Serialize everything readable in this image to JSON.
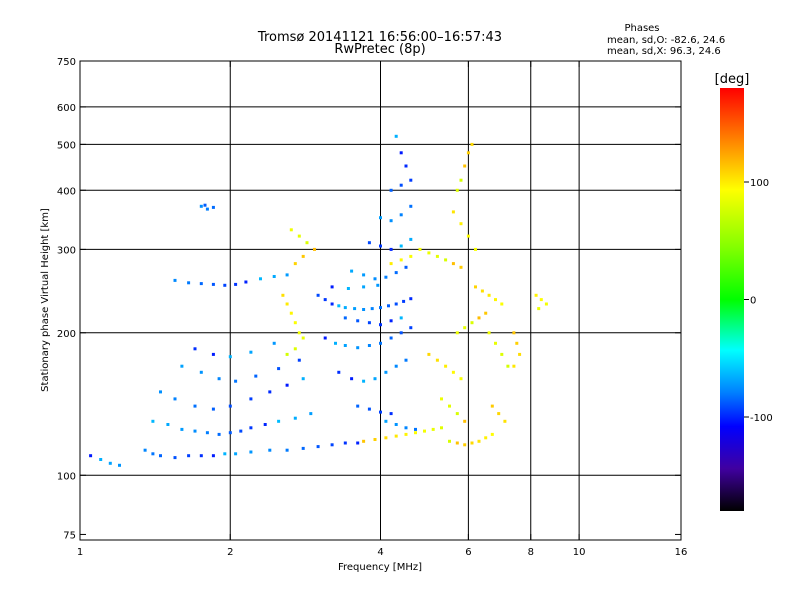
{
  "chart_data": {
    "type": "scatter",
    "title": "Tromsø 20141121 16:56:00–16:57:43",
    "subtitle": "RwPretec (8p)",
    "stats": {
      "heading": "Phases",
      "line_o": "mean, sd,O: -82.6, 24.6",
      "line_x": "mean, sd,X:  96.3, 24.6"
    },
    "xlabel": "Frequency [MHz]",
    "ylabel": "Stationary phase Virtual Height [km]",
    "xscale": "log",
    "yscale": "log",
    "xlim": [
      1,
      16
    ],
    "ylim": [
      73,
      750
    ],
    "x_ticks": [
      1,
      2,
      4,
      6,
      8,
      10,
      16
    ],
    "y_ticks": [
      75,
      100,
      200,
      300,
      400,
      500,
      600,
      750
    ],
    "x_grid": [
      2,
      4,
      6,
      8,
      10
    ],
    "y_grid": [
      100,
      200,
      300,
      400,
      500,
      600
    ],
    "colorbar": {
      "label": "[deg]",
      "range": [
        -180,
        180
      ],
      "ticks": [
        100,
        0,
        -100
      ]
    },
    "series": [
      {
        "mode": "O",
        "approx_phase_mean": -82.6,
        "points": [
          [
            1.05,
            110
          ],
          [
            1.1,
            108
          ],
          [
            1.15,
            106
          ],
          [
            1.2,
            105
          ],
          [
            1.35,
            113
          ],
          [
            1.4,
            111
          ],
          [
            1.45,
            110
          ],
          [
            1.55,
            109
          ],
          [
            1.65,
            110
          ],
          [
            1.75,
            110
          ],
          [
            1.85,
            110
          ],
          [
            1.95,
            111
          ],
          [
            2.05,
            111
          ],
          [
            2.2,
            112
          ],
          [
            2.4,
            113
          ],
          [
            2.6,
            113
          ],
          [
            2.8,
            114
          ],
          [
            3.0,
            115
          ],
          [
            3.2,
            116
          ],
          [
            3.4,
            117
          ],
          [
            3.6,
            117
          ],
          [
            1.4,
            130
          ],
          [
            1.5,
            128
          ],
          [
            1.6,
            125
          ],
          [
            1.7,
            124
          ],
          [
            1.8,
            123
          ],
          [
            1.9,
            122
          ],
          [
            2.0,
            123
          ],
          [
            2.1,
            124
          ],
          [
            2.2,
            126
          ],
          [
            2.35,
            128
          ],
          [
            2.5,
            130
          ],
          [
            2.7,
            132
          ],
          [
            2.9,
            135
          ],
          [
            1.45,
            150
          ],
          [
            1.55,
            145
          ],
          [
            1.7,
            140
          ],
          [
            1.85,
            138
          ],
          [
            2.0,
            140
          ],
          [
            2.2,
            145
          ],
          [
            2.4,
            150
          ],
          [
            2.6,
            155
          ],
          [
            2.8,
            160
          ],
          [
            1.6,
            170
          ],
          [
            1.75,
            165
          ],
          [
            1.9,
            160
          ],
          [
            2.05,
            158
          ],
          [
            2.25,
            162
          ],
          [
            2.5,
            168
          ],
          [
            2.75,
            175
          ],
          [
            1.7,
            185
          ],
          [
            1.85,
            180
          ],
          [
            2.0,
            178
          ],
          [
            2.2,
            182
          ],
          [
            2.45,
            190
          ],
          [
            1.55,
            258
          ],
          [
            1.65,
            255
          ],
          [
            1.75,
            254
          ],
          [
            1.85,
            253
          ],
          [
            1.95,
            252
          ],
          [
            2.05,
            253
          ],
          [
            2.15,
            256
          ],
          [
            2.3,
            260
          ],
          [
            2.45,
            263
          ],
          [
            2.6,
            265
          ],
          [
            1.75,
            370
          ],
          [
            1.8,
            365
          ],
          [
            1.85,
            368
          ],
          [
            1.78,
            372
          ],
          [
            3.0,
            240
          ],
          [
            3.1,
            235
          ],
          [
            3.2,
            230
          ],
          [
            3.3,
            228
          ],
          [
            3.4,
            226
          ],
          [
            3.55,
            225
          ],
          [
            3.7,
            224
          ],
          [
            3.85,
            225
          ],
          [
            4.0,
            226
          ],
          [
            4.15,
            228
          ],
          [
            4.3,
            230
          ],
          [
            4.45,
            233
          ],
          [
            4.6,
            236
          ],
          [
            3.1,
            195
          ],
          [
            3.25,
            190
          ],
          [
            3.4,
            188
          ],
          [
            3.6,
            186
          ],
          [
            3.8,
            188
          ],
          [
            4.0,
            190
          ],
          [
            4.2,
            195
          ],
          [
            4.4,
            200
          ],
          [
            4.6,
            205
          ],
          [
            3.3,
            165
          ],
          [
            3.5,
            160
          ],
          [
            3.7,
            158
          ],
          [
            3.9,
            160
          ],
          [
            4.1,
            165
          ],
          [
            4.3,
            170
          ],
          [
            4.5,
            175
          ],
          [
            3.4,
            215
          ],
          [
            3.6,
            212
          ],
          [
            3.8,
            210
          ],
          [
            4.0,
            208
          ],
          [
            4.2,
            212
          ],
          [
            4.4,
            215
          ],
          [
            3.5,
            270
          ],
          [
            3.7,
            265
          ],
          [
            3.9,
            260
          ],
          [
            4.1,
            262
          ],
          [
            4.3,
            268
          ],
          [
            4.5,
            275
          ],
          [
            3.8,
            310
          ],
          [
            4.0,
            305
          ],
          [
            4.2,
            300
          ],
          [
            4.4,
            305
          ],
          [
            4.6,
            315
          ],
          [
            4.0,
            350
          ],
          [
            4.2,
            345
          ],
          [
            4.4,
            355
          ],
          [
            4.6,
            370
          ],
          [
            4.2,
            400
          ],
          [
            4.4,
            410
          ],
          [
            4.6,
            420
          ],
          [
            4.5,
            450
          ],
          [
            4.4,
            480
          ],
          [
            4.3,
            520
          ],
          [
            4.1,
            130
          ],
          [
            4.3,
            128
          ],
          [
            4.5,
            126
          ],
          [
            4.7,
            125
          ],
          [
            3.6,
            140
          ],
          [
            3.8,
            138
          ],
          [
            4.0,
            136
          ],
          [
            4.2,
            135
          ],
          [
            3.2,
            250
          ],
          [
            3.45,
            248
          ],
          [
            3.7,
            250
          ],
          [
            3.95,
            252
          ]
        ]
      },
      {
        "mode": "X",
        "approx_phase_mean": 96.3,
        "points": [
          [
            2.65,
            330
          ],
          [
            2.75,
            320
          ],
          [
            2.85,
            310
          ],
          [
            2.95,
            300
          ],
          [
            2.8,
            290
          ],
          [
            2.7,
            280
          ],
          [
            2.55,
            240
          ],
          [
            2.6,
            230
          ],
          [
            2.65,
            220
          ],
          [
            2.7,
            210
          ],
          [
            2.75,
            200
          ],
          [
            2.8,
            195
          ],
          [
            2.7,
            185
          ],
          [
            2.6,
            180
          ],
          [
            3.7,
            118
          ],
          [
            3.9,
            119
          ],
          [
            4.1,
            120
          ],
          [
            4.3,
            121
          ],
          [
            4.5,
            122
          ],
          [
            4.7,
            123
          ],
          [
            4.9,
            124
          ],
          [
            5.1,
            125
          ],
          [
            5.3,
            126
          ],
          [
            5.5,
            118
          ],
          [
            5.7,
            117
          ],
          [
            5.9,
            116
          ],
          [
            6.1,
            117
          ],
          [
            6.3,
            118
          ],
          [
            6.5,
            120
          ],
          [
            6.7,
            122
          ],
          [
            4.8,
            300
          ],
          [
            5.0,
            295
          ],
          [
            5.2,
            290
          ],
          [
            5.4,
            285
          ],
          [
            5.6,
            280
          ],
          [
            5.8,
            275
          ],
          [
            5.0,
            180
          ],
          [
            5.2,
            175
          ],
          [
            5.4,
            170
          ],
          [
            5.6,
            165
          ],
          [
            5.8,
            160
          ],
          [
            5.7,
            200
          ],
          [
            5.9,
            205
          ],
          [
            6.1,
            210
          ],
          [
            6.3,
            215
          ],
          [
            6.5,
            220
          ],
          [
            6.2,
            250
          ],
          [
            6.4,
            245
          ],
          [
            6.6,
            240
          ],
          [
            6.8,
            235
          ],
          [
            7.0,
            230
          ],
          [
            6.6,
            200
          ],
          [
            6.8,
            190
          ],
          [
            7.0,
            180
          ],
          [
            7.2,
            170
          ],
          [
            7.4,
            200
          ],
          [
            7.5,
            190
          ],
          [
            7.6,
            180
          ],
          [
            7.4,
            170
          ],
          [
            8.2,
            240
          ],
          [
            8.4,
            235
          ],
          [
            8.6,
            230
          ],
          [
            8.3,
            225
          ],
          [
            5.7,
            400
          ],
          [
            5.8,
            420
          ],
          [
            5.9,
            450
          ],
          [
            6.0,
            480
          ],
          [
            6.1,
            500
          ],
          [
            5.6,
            360
          ],
          [
            5.8,
            340
          ],
          [
            6.0,
            320
          ],
          [
            6.2,
            300
          ],
          [
            5.3,
            145
          ],
          [
            5.5,
            140
          ],
          [
            5.7,
            135
          ],
          [
            5.9,
            130
          ],
          [
            6.7,
            140
          ],
          [
            6.9,
            135
          ],
          [
            7.1,
            130
          ],
          [
            4.2,
            280
          ],
          [
            4.4,
            285
          ],
          [
            4.6,
            290
          ]
        ]
      }
    ]
  }
}
